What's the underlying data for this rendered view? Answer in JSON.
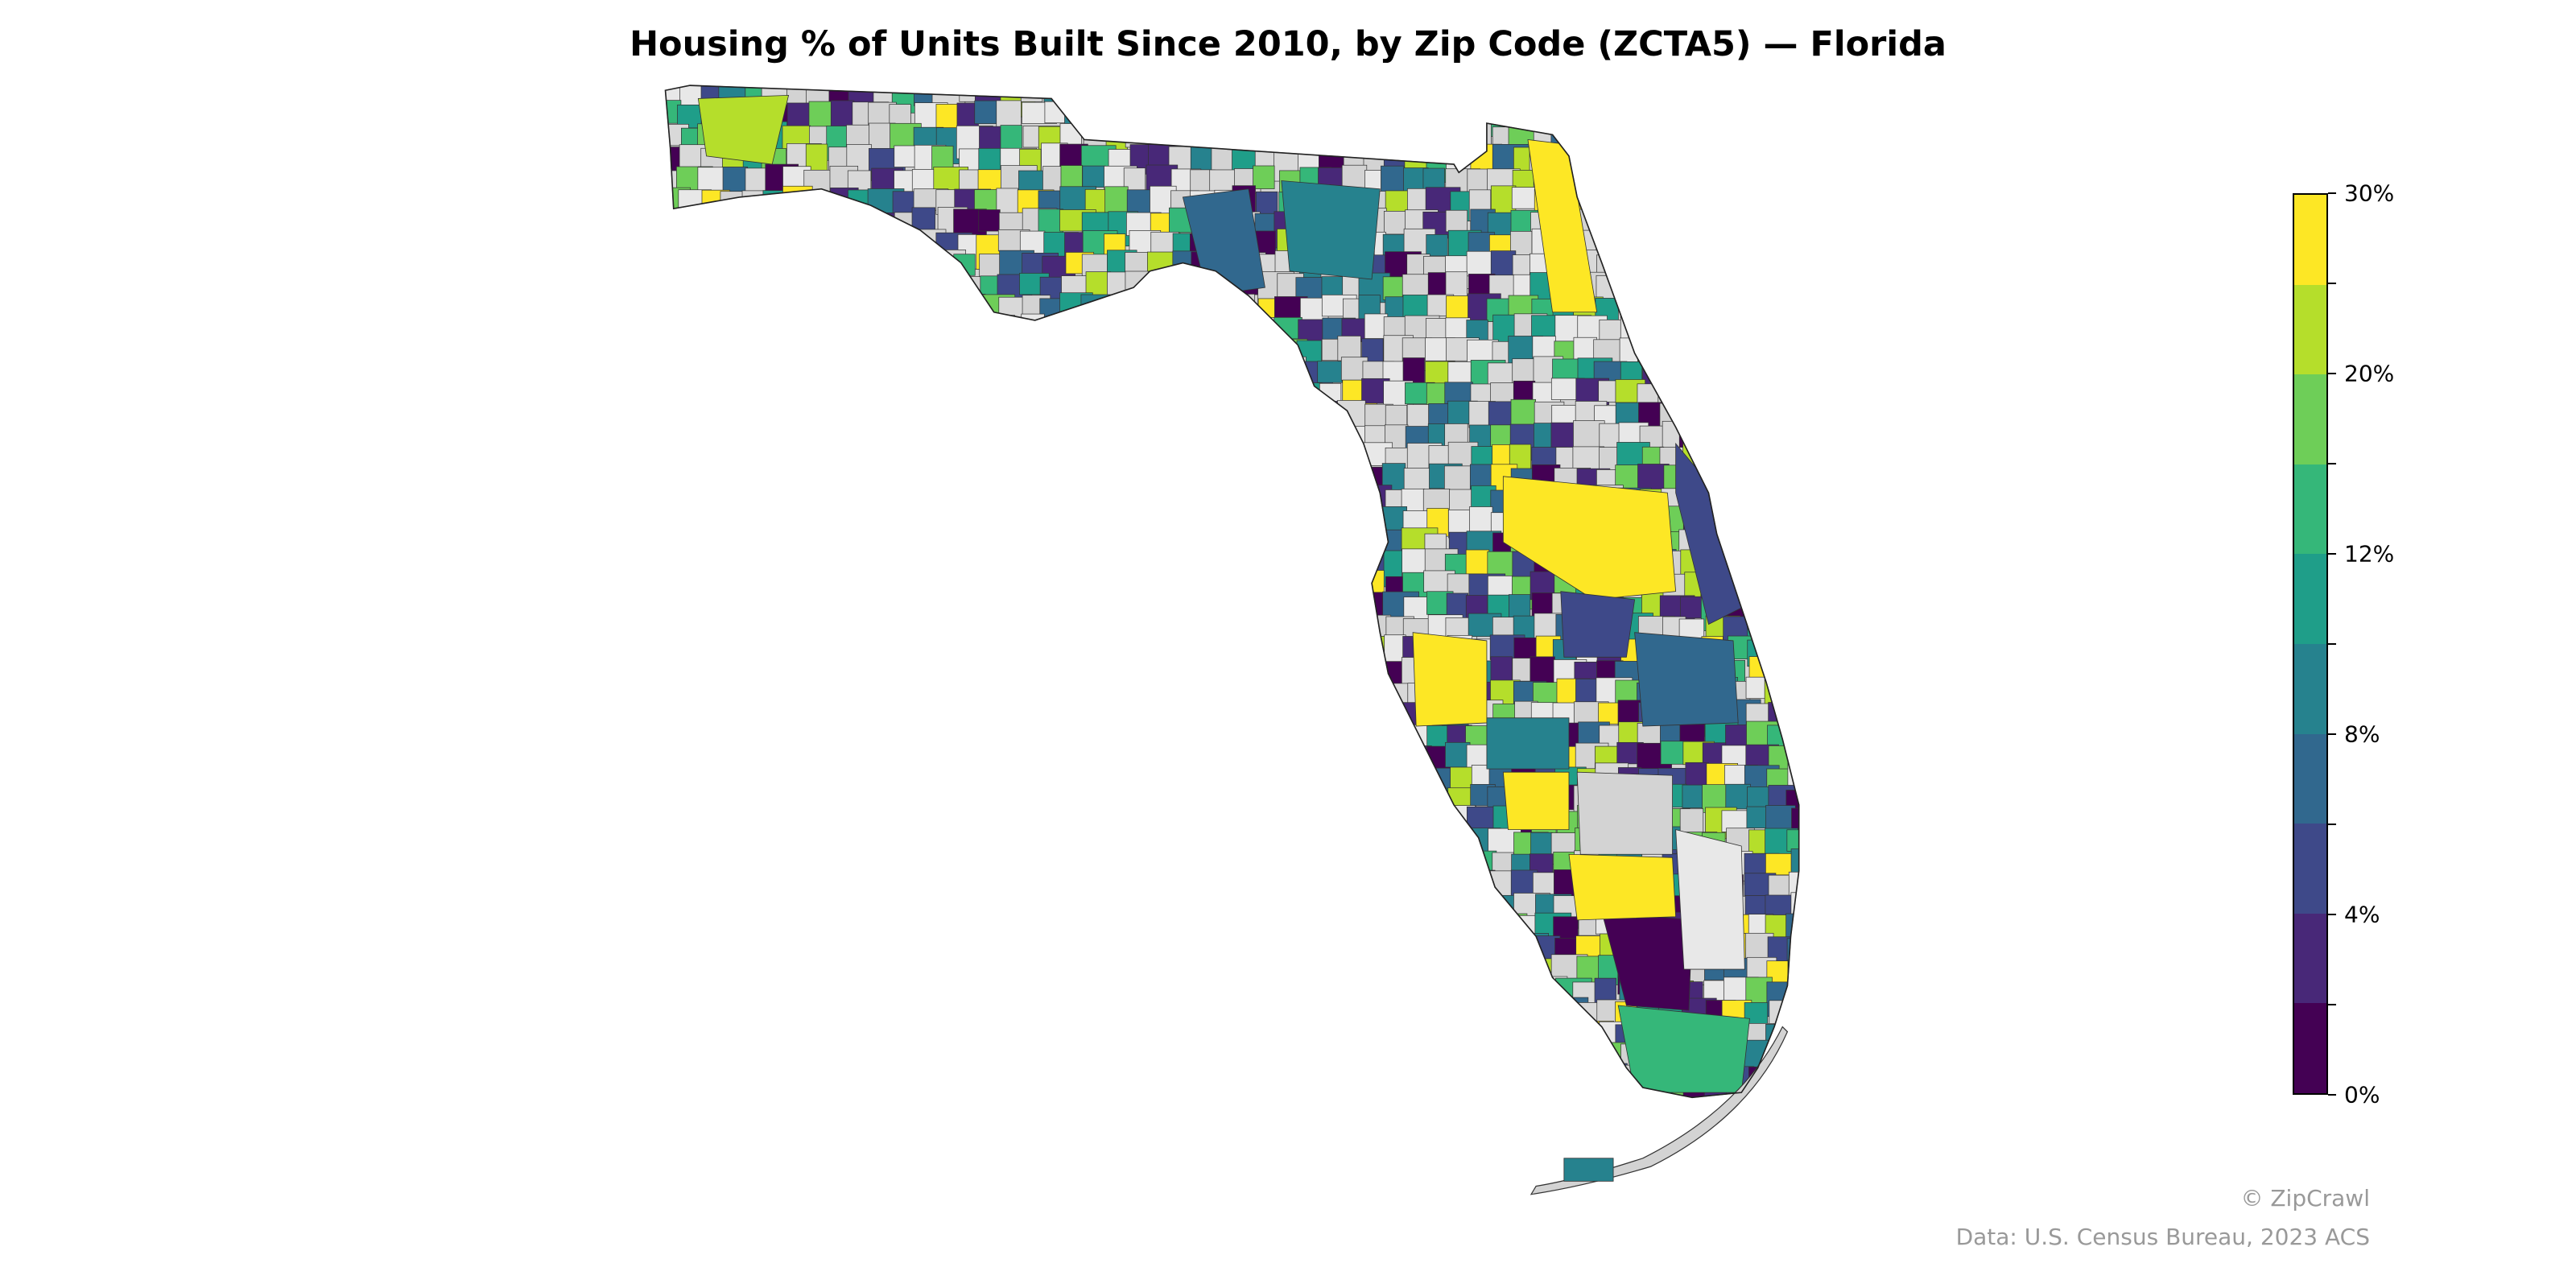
{
  "title": "Housing % of Units Built Since 2010, by Zip Code (ZCTA5) — Florida",
  "map": {
    "region": "Florida",
    "unit": "Zip Code (ZCTA5)",
    "no_data_color": "#d3d3d3",
    "border_color": "#333333"
  },
  "colorbar": {
    "bins": [
      0,
      2,
      4,
      6,
      8,
      10,
      12,
      16,
      20,
      25,
      30
    ],
    "colors": [
      "#440154",
      "#482878",
      "#3e4989",
      "#31688e",
      "#26828e",
      "#1f9e89",
      "#35b779",
      "#6ece58",
      "#b5de2b",
      "#fde725"
    ],
    "tick_labels": [
      {
        "value": 0,
        "label": "0%"
      },
      {
        "value": 4,
        "label": "4%"
      },
      {
        "value": 8,
        "label": "8%"
      },
      {
        "value": 12,
        "label": "12%"
      },
      {
        "value": 20,
        "label": "20%"
      },
      {
        "value": 30,
        "label": "30%"
      }
    ]
  },
  "credits": {
    "copyright": "© ZipCrawl",
    "source": "Data: U.S. Census Bureau, 2023 ACS"
  }
}
